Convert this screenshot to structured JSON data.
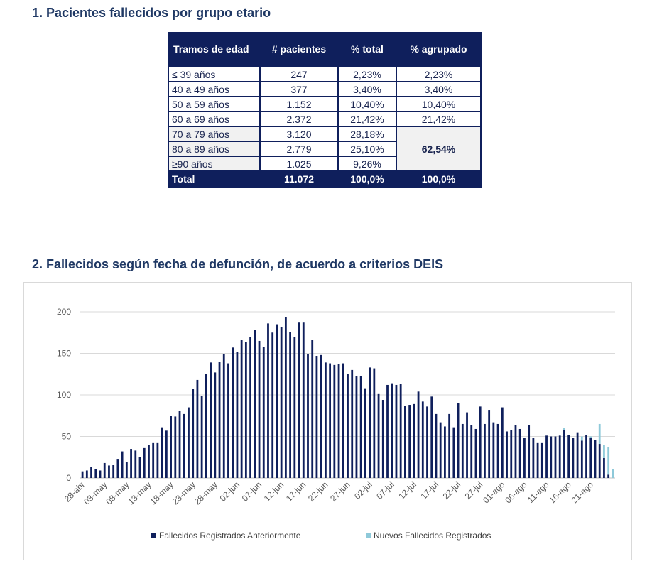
{
  "section1": {
    "title": "1.  Pacientes fallecidos por grupo etario",
    "headers": [
      "Tramos de edad",
      "# pacientes",
      "% total",
      "% agrupado"
    ],
    "rows": [
      {
        "tramo": "≤ 39 años",
        "pacientes": "247",
        "pct": "2,23%",
        "agrupado": "2,23%"
      },
      {
        "tramo": "40 a 49 años",
        "pacientes": "377",
        "pct": "3,40%",
        "agrupado": "3,40%"
      },
      {
        "tramo": "50 a 59 años",
        "pacientes": "1.152",
        "pct": "10,40%",
        "agrupado": "10,40%"
      },
      {
        "tramo": "60 a 69 años",
        "pacientes": "2.372",
        "pct": "21,42%",
        "agrupado": "21,42%"
      },
      {
        "tramo": "70 a 79 años",
        "pacientes": "3.120",
        "pct": "28,18%"
      },
      {
        "tramo": "80 a 89 años",
        "pacientes": "2.779",
        "pct": "25,10%"
      },
      {
        "tramo": "≥90 años",
        "pacientes": "1.025",
        "pct": "9,26%"
      }
    ],
    "merged_agrupado": "62,54%",
    "total": {
      "label": "Total",
      "pacientes": "11.072",
      "pct": "100,0%",
      "agrupado": "100,0%"
    }
  },
  "section2": {
    "title": "2.  Fallecidos según fecha de defunción, de acuerdo a criterios DEIS"
  },
  "chart_data": {
    "type": "bar",
    "stacked": true,
    "start_date": "28-abr",
    "x_ticks": [
      "28-abr",
      "03-may",
      "08-may",
      "13-may",
      "18-may",
      "23-may",
      "28-may",
      "02-jun",
      "07-jun",
      "12-jun",
      "17-jun",
      "22-jun",
      "27-jun",
      "02-jul",
      "07-jul",
      "12-jul",
      "17-jul",
      "22-jul",
      "27-jul",
      "01-ago",
      "06-ago",
      "11-ago",
      "16-ago",
      "21-ago"
    ],
    "y_ticks": [
      0,
      50,
      100,
      150,
      200
    ],
    "ylim": [
      0,
      200
    ],
    "grid": true,
    "legend_position": "bottom",
    "series": [
      {
        "name": "Fallecidos Registrados Anteriormente",
        "color": "#0f1f5c",
        "values": [
          8,
          9,
          13,
          11,
          9,
          18,
          15,
          16,
          23,
          32,
          19,
          35,
          33,
          25,
          36,
          40,
          42,
          42,
          61,
          57,
          75,
          74,
          81,
          77,
          85,
          107,
          118,
          99,
          125,
          139,
          127,
          140,
          149,
          138,
          157,
          152,
          166,
          164,
          170,
          178,
          165,
          158,
          186,
          175,
          185,
          182,
          194,
          176,
          170,
          187,
          187,
          149,
          166,
          147,
          148,
          139,
          138,
          136,
          137,
          138,
          125,
          130,
          123,
          123,
          108,
          133,
          132,
          101,
          94,
          112,
          114,
          112,
          113,
          87,
          88,
          89,
          104,
          92,
          86,
          98,
          77,
          67,
          62,
          77,
          61,
          90,
          65,
          79,
          64,
          59,
          86,
          65,
          82,
          67,
          65,
          85,
          56,
          58,
          64,
          59,
          48,
          64,
          48,
          42,
          42,
          51,
          50,
          50,
          51,
          58,
          52,
          48,
          55,
          45,
          52,
          48,
          46,
          41,
          24,
          4,
          0
        ],
        "note": "daily values from 28-abr"
      },
      {
        "name": "Nuevos Fallecidos Registrados",
        "color": "#8ec9d9",
        "values": [
          0,
          0,
          0,
          0,
          0,
          0,
          0,
          0,
          0,
          0,
          0,
          0,
          0,
          0,
          0,
          0,
          0,
          0,
          0,
          0,
          0,
          0,
          0,
          0,
          0,
          0,
          0,
          0,
          0,
          0,
          0,
          0,
          0,
          0,
          0,
          0,
          0,
          0,
          0,
          0,
          0,
          0,
          0,
          0,
          0,
          0,
          0,
          0,
          0,
          0,
          0,
          0,
          0,
          0,
          0,
          0,
          0,
          0,
          0,
          0,
          0,
          0,
          0,
          0,
          0,
          0,
          0,
          0,
          0,
          0,
          0,
          0,
          0,
          0,
          0,
          0,
          0,
          0,
          0,
          0,
          0,
          0,
          0,
          0,
          0,
          0,
          0,
          0,
          0,
          0,
          0,
          0,
          0,
          0,
          0,
          0,
          0,
          0,
          0,
          0,
          0,
          0,
          0,
          0,
          0,
          0,
          0,
          0,
          0,
          2,
          0,
          0,
          0,
          5,
          0,
          2,
          0,
          24,
          16,
          33,
          11
        ]
      }
    ]
  }
}
